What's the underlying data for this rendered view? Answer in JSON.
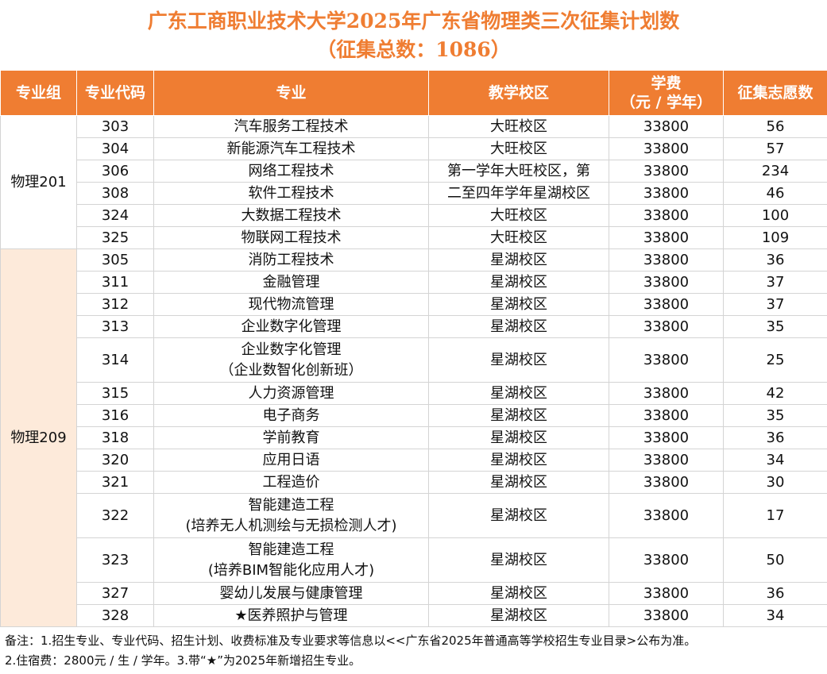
{
  "title": {
    "line1": "广东工商职业技术大学2025年广东省物理类三次征集计划数",
    "line2": "（征集总数：1086）"
  },
  "colors": {
    "header_bg": "#ef7d32",
    "title_color": "#ef7d32",
    "group2_bg": "#fdeada"
  },
  "headers": {
    "group": "专业组",
    "code": "专业代码",
    "major": "专业",
    "campus": "教学校区",
    "fee_line1": "学费",
    "fee_line2": "（元 / 学年）",
    "quota": "征集志愿数"
  },
  "groups": [
    {
      "name": "物理201",
      "rows": [
        {
          "code": "303",
          "major": [
            "汽车服务工程技术"
          ],
          "campus": "大旺校区",
          "fee": "33800",
          "quota": "56"
        },
        {
          "code": "304",
          "major": [
            "新能源汽车工程技术"
          ],
          "campus": "大旺校区",
          "fee": "33800",
          "quota": "57"
        },
        {
          "code": "306",
          "major": [
            "网络工程技术"
          ],
          "campus": "第一学年大旺校区，第",
          "fee": "33800",
          "quota": "234"
        },
        {
          "code": "308",
          "major": [
            "软件工程技术"
          ],
          "campus": "二至四年学年星湖校区",
          "fee": "33800",
          "quota": "46"
        },
        {
          "code": "324",
          "major": [
            "大数据工程技术"
          ],
          "campus": "大旺校区",
          "fee": "33800",
          "quota": "100"
        },
        {
          "code": "325",
          "major": [
            "物联网工程技术"
          ],
          "campus": "大旺校区",
          "fee": "33800",
          "quota": "109"
        }
      ]
    },
    {
      "name": "物理209",
      "rows": [
        {
          "code": "305",
          "major": [
            "消防工程技术"
          ],
          "campus": "星湖校区",
          "fee": "33800",
          "quota": "36"
        },
        {
          "code": "311",
          "major": [
            "金融管理"
          ],
          "campus": "星湖校区",
          "fee": "33800",
          "quota": "37"
        },
        {
          "code": "312",
          "major": [
            "现代物流管理"
          ],
          "campus": "星湖校区",
          "fee": "33800",
          "quota": "37"
        },
        {
          "code": "313",
          "major": [
            "企业数字化管理"
          ],
          "campus": "星湖校区",
          "fee": "33800",
          "quota": "35"
        },
        {
          "code": "314",
          "major": [
            "企业数字化管理",
            "（企业数智化创新班）"
          ],
          "campus": "星湖校区",
          "fee": "33800",
          "quota": "25"
        },
        {
          "code": "315",
          "major": [
            "人力资源管理"
          ],
          "campus": "星湖校区",
          "fee": "33800",
          "quota": "42"
        },
        {
          "code": "316",
          "major": [
            "电子商务"
          ],
          "campus": "星湖校区",
          "fee": "33800",
          "quota": "35"
        },
        {
          "code": "318",
          "major": [
            "学前教育"
          ],
          "campus": "星湖校区",
          "fee": "33800",
          "quota": "36"
        },
        {
          "code": "320",
          "major": [
            "应用日语"
          ],
          "campus": "星湖校区",
          "fee": "33800",
          "quota": "34"
        },
        {
          "code": "321",
          "major": [
            "工程造价"
          ],
          "campus": "星湖校区",
          "fee": "33800",
          "quota": "30"
        },
        {
          "code": "322",
          "major": [
            "智能建造工程",
            "(培养无人机测绘与无损检测人才)"
          ],
          "campus": "星湖校区",
          "fee": "33800",
          "quota": "17"
        },
        {
          "code": "323",
          "major": [
            "智能建造工程",
            "(培养BIM智能化应用人才)"
          ],
          "campus": "星湖校区",
          "fee": "33800",
          "quota": "50"
        },
        {
          "code": "327",
          "major": [
            "婴幼儿发展与健康管理"
          ],
          "campus": "星湖校区",
          "fee": "33800",
          "quota": "36"
        },
        {
          "code": "328",
          "major": [
            "★医养照护与管理"
          ],
          "campus": "星湖校区",
          "fee": "33800",
          "quota": "34"
        }
      ]
    }
  ],
  "notes": {
    "line1": "备注：1.招生专业、专业代码、招生计划、收费标准及专业要求等信息以<<广东省2025年普通高等学校招生专业目录>公布为准。",
    "line2": "2.住宿费：2800元 / 生 / 学年。3.带“★”为2025年新增招生专业。"
  }
}
